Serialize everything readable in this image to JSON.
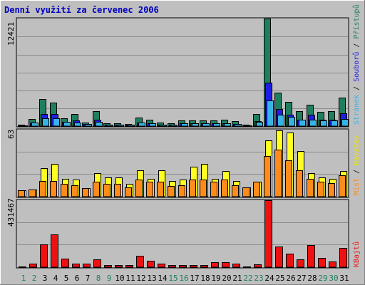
{
  "title": "Denní využití za červenec 2006",
  "colors": {
    "title": "#0000c0",
    "background": "#bfbfbf",
    "hits": "#1e7f5f",
    "files": "#1e1ee6",
    "pages": "#36b4e6",
    "visits": "#ffff22",
    "sites": "#ff8c1a",
    "kbytes": "#ee1111",
    "weekday_label": "#000000",
    "weekend_label": "#1e7f5f"
  },
  "legend": {
    "top": {
      "pages": "Stránek",
      "sep1": " / ",
      "files": "Souborů",
      "sep2": " / ",
      "hits": "Přístupů"
    },
    "middle": {
      "sites": "Míst",
      "sep": " / ",
      "visits": "Návštěv"
    },
    "bottom": {
      "kbytes": "KBajtů"
    }
  },
  "chart_data": [
    {
      "type": "bar",
      "panel": "requests",
      "ymax_label": "12421",
      "ylim": [
        0,
        12421
      ],
      "categories": [
        "1",
        "2",
        "3",
        "4",
        "5",
        "6",
        "7",
        "8",
        "9",
        "10",
        "11",
        "12",
        "13",
        "14",
        "15",
        "16",
        "17",
        "18",
        "19",
        "20",
        "21",
        "22",
        "23",
        "24",
        "25",
        "26",
        "27",
        "28",
        "29",
        "30",
        "31"
      ],
      "weekend_days": [
        "1",
        "2",
        "8",
        "9",
        "15",
        "16",
        "22",
        "23",
        "29",
        "30"
      ],
      "series": [
        {
          "name": "Přístupů",
          "values": [
            130,
            800,
            3100,
            2700,
            900,
            1400,
            450,
            1750,
            350,
            350,
            250,
            950,
            700,
            400,
            300,
            650,
            650,
            650,
            650,
            700,
            550,
            150,
            1400,
            12421,
            3900,
            2800,
            1700,
            2500,
            1650,
            1750,
            3300
          ]
        },
        {
          "name": "Souborů",
          "values": [
            90,
            380,
            1400,
            1400,
            480,
            650,
            230,
            700,
            180,
            180,
            130,
            450,
            330,
            200,
            150,
            300,
            330,
            330,
            330,
            350,
            260,
            70,
            600,
            5000,
            2000,
            1300,
            780,
            1300,
            700,
            700,
            1500
          ]
        },
        {
          "name": "Stránek",
          "values": [
            40,
            380,
            900,
            900,
            480,
            380,
            230,
            480,
            180,
            180,
            130,
            380,
            330,
            200,
            150,
            300,
            330,
            330,
            330,
            350,
            260,
            40,
            480,
            3000,
            1300,
            1100,
            700,
            700,
            650,
            650,
            800
          ]
        }
      ]
    },
    {
      "type": "bar",
      "panel": "visitors",
      "ymax_label": "63",
      "ylim": [
        0,
        63
      ],
      "categories": [
        "1",
        "2",
        "3",
        "4",
        "5",
        "6",
        "7",
        "8",
        "9",
        "10",
        "11",
        "12",
        "13",
        "14",
        "15",
        "16",
        "17",
        "18",
        "19",
        "20",
        "21",
        "22",
        "23",
        "24",
        "25",
        "26",
        "27",
        "28",
        "29",
        "30",
        "31"
      ],
      "series": [
        {
          "name": "Návštěv",
          "values": [
            6,
            7,
            27,
            31,
            17,
            16,
            8,
            22,
            18,
            18,
            12,
            25,
            17,
            25,
            15,
            16,
            28,
            31,
            17,
            24,
            15,
            9,
            14,
            53,
            62,
            60,
            43,
            22,
            18,
            17,
            24
          ]
        },
        {
          "name": "Míst",
          "values": [
            6,
            7,
            15,
            15,
            12,
            11,
            8,
            14,
            12,
            12,
            9,
            16,
            14,
            14,
            10,
            11,
            16,
            16,
            14,
            16,
            11,
            9,
            14,
            38,
            44,
            34,
            25,
            17,
            14,
            13,
            20
          ]
        }
      ]
    },
    {
      "type": "bar",
      "panel": "traffic",
      "ymax_label": "431467",
      "ylim": [
        0,
        431467
      ],
      "categories": [
        "1",
        "2",
        "3",
        "4",
        "5",
        "6",
        "7",
        "8",
        "9",
        "10",
        "11",
        "12",
        "13",
        "14",
        "15",
        "16",
        "17",
        "18",
        "19",
        "20",
        "21",
        "22",
        "23",
        "24",
        "25",
        "26",
        "27",
        "28",
        "29",
        "30",
        "31"
      ],
      "series": [
        {
          "name": "KBajtů",
          "values": [
            5000,
            25000,
            145000,
            210000,
            55000,
            22000,
            22000,
            50000,
            15000,
            15000,
            15000,
            75000,
            40000,
            22000,
            12000,
            12000,
            12000,
            15000,
            30000,
            30000,
            25000,
            2000,
            20000,
            431467,
            135000,
            85000,
            50000,
            140000,
            60000,
            35000,
            125000
          ]
        }
      ]
    }
  ]
}
